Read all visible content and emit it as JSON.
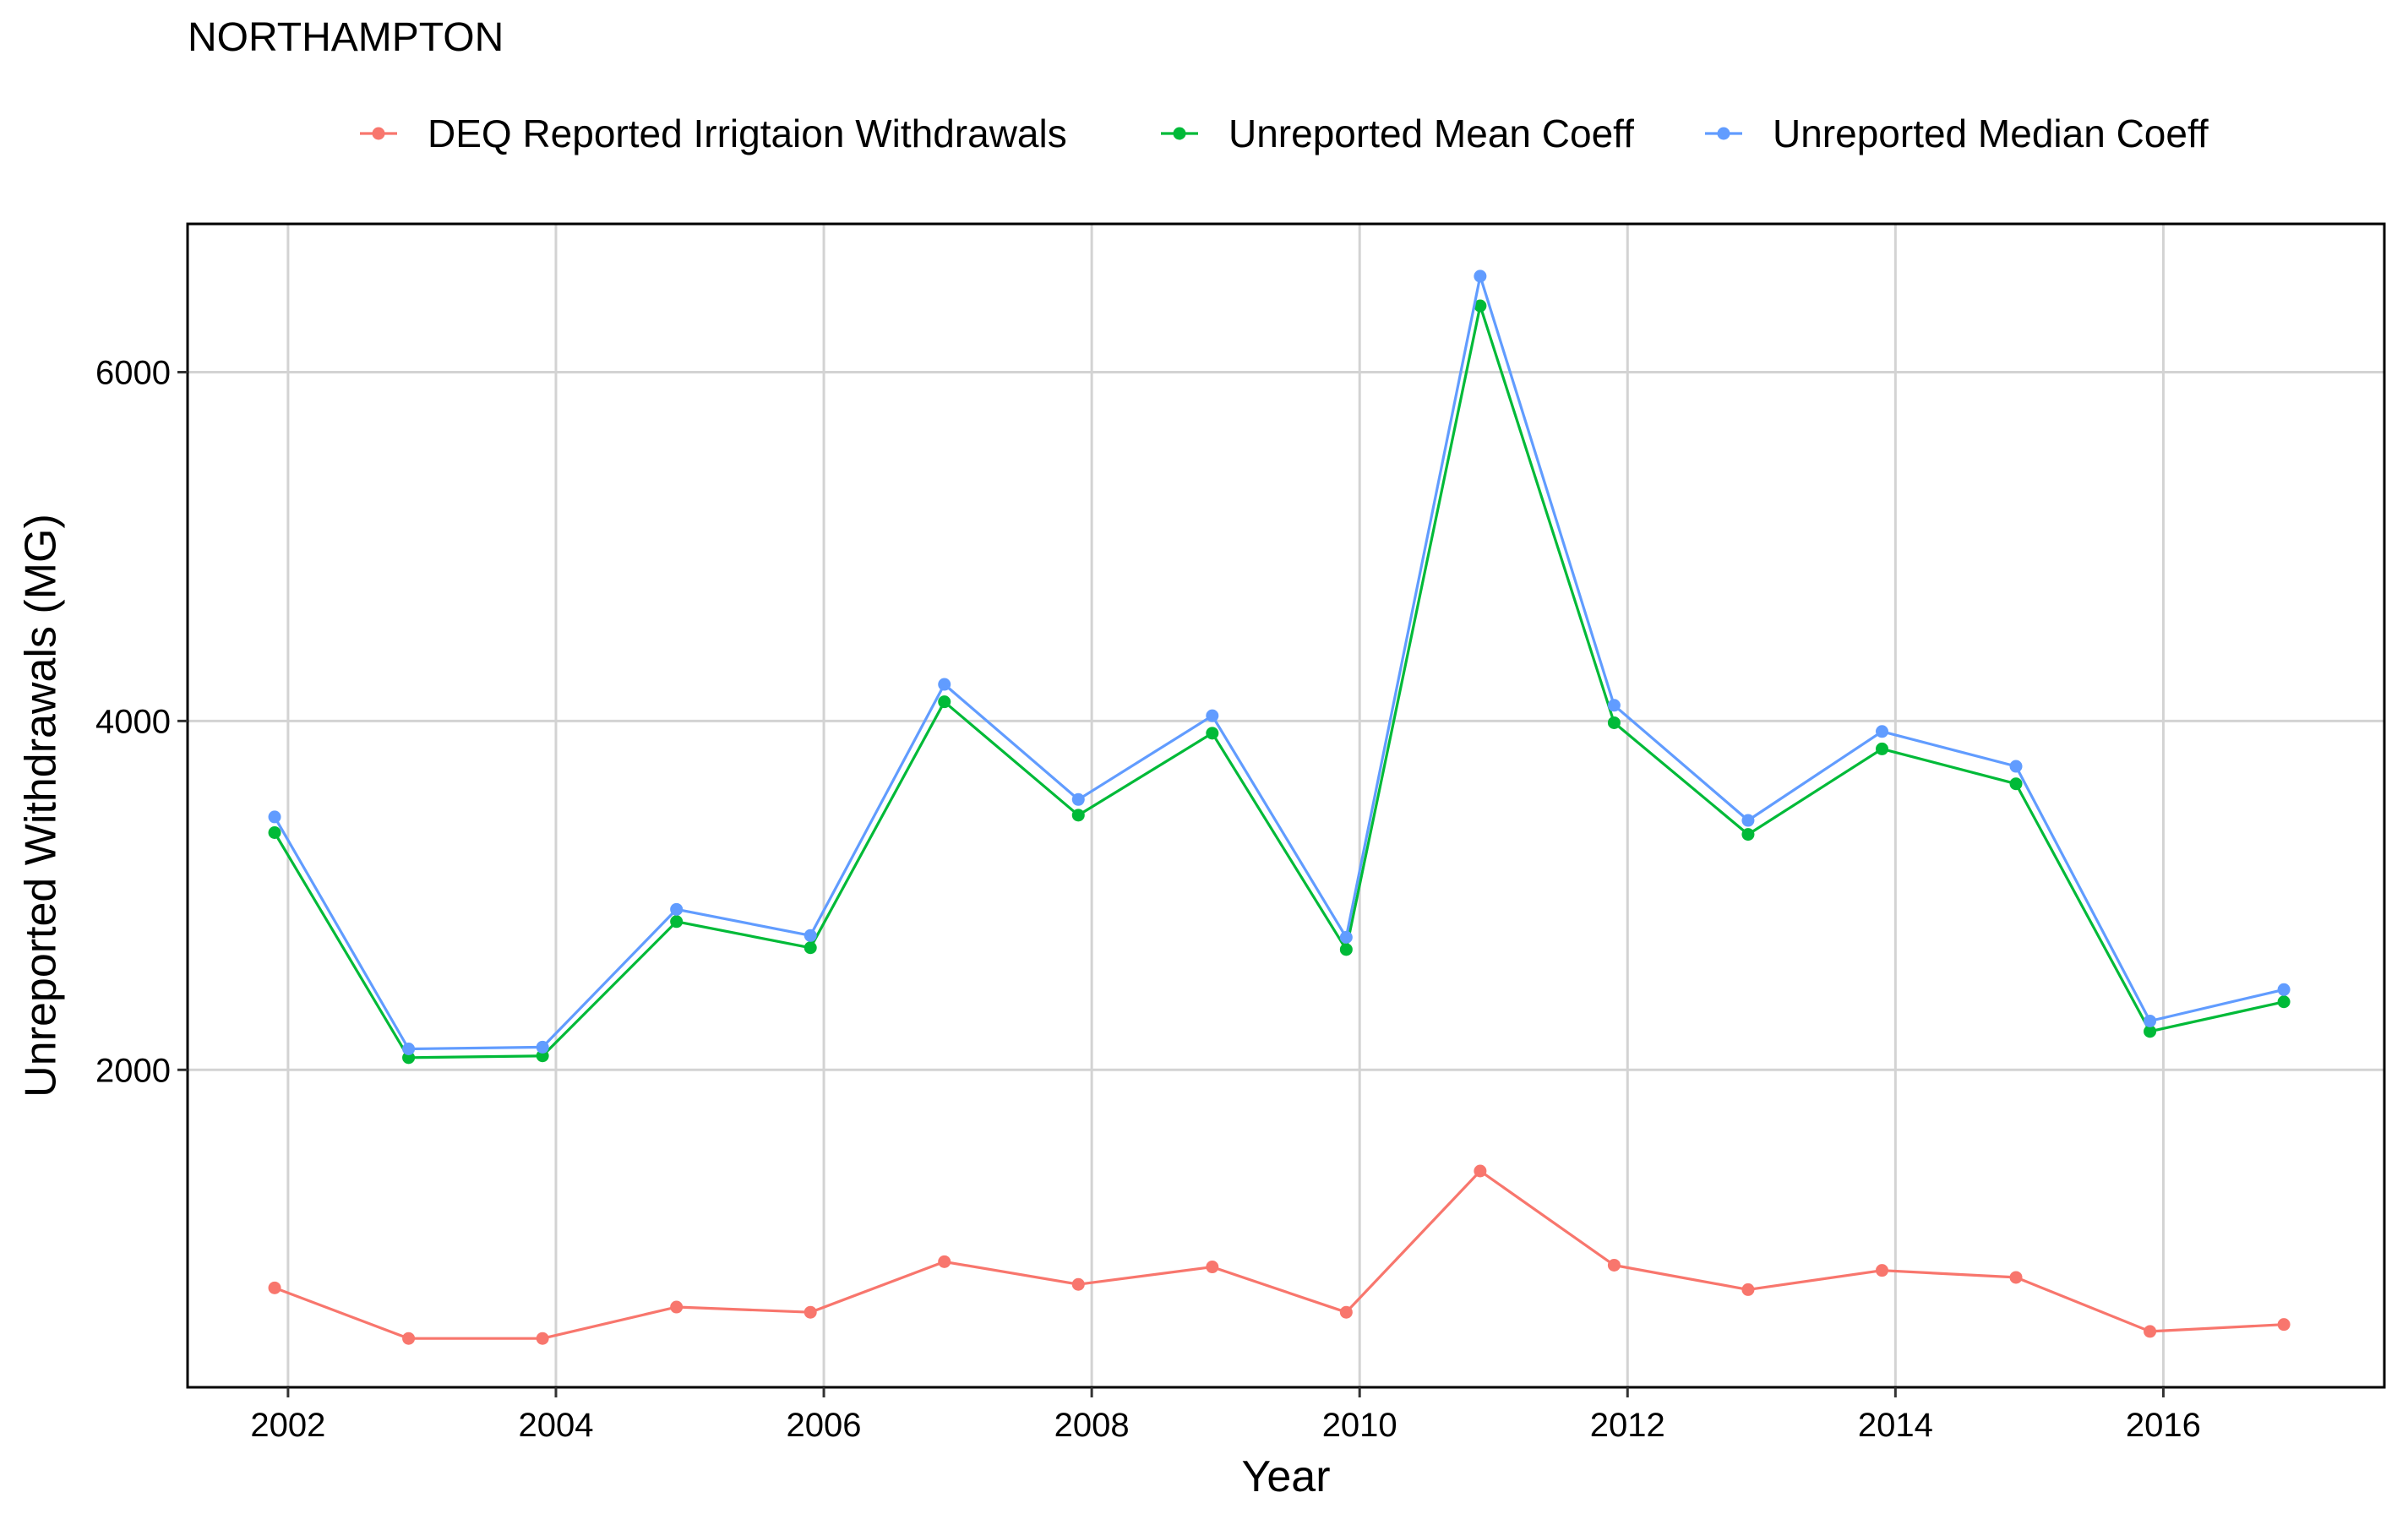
{
  "chart_data": {
    "type": "line",
    "title": "NORTHAMPTON",
    "xlabel": "Year",
    "ylabel": "Unreported Withdrawals (MG)",
    "x": [
      2001.9,
      2002.9,
      2003.9,
      2004.9,
      2005.9,
      2006.9,
      2007.9,
      2008.9,
      2009.9,
      2010.9,
      2011.9,
      2012.9,
      2013.9,
      2014.9,
      2015.9,
      2016.9
    ],
    "xlim": [
      2001.25,
      2017.65
    ],
    "ylim": [
      180,
      6850
    ],
    "x_ticks": [
      2002,
      2004,
      2006,
      2008,
      2010,
      2012,
      2014,
      2016
    ],
    "y_ticks": [
      2000,
      4000,
      6000
    ],
    "grid": true,
    "legend_position": "top",
    "series": [
      {
        "name": "DEQ Reported Irrigtaion Withdrawals",
        "color": "#F8766D",
        "values": [
          750,
          460,
          460,
          640,
          610,
          900,
          770,
          870,
          610,
          1420,
          880,
          740,
          850,
          810,
          500,
          540
        ]
      },
      {
        "name": "Unreported Mean Coeff",
        "color": "#00BA38",
        "values": [
          3360,
          2070,
          2080,
          2850,
          2700,
          4110,
          3460,
          3930,
          2690,
          6380,
          3990,
          3350,
          3840,
          3640,
          2220,
          2390
        ]
      },
      {
        "name": "Unreported Median Coeff",
        "color": "#619CFF",
        "values": [
          3450,
          2120,
          2130,
          2920,
          2770,
          4210,
          3550,
          4030,
          2760,
          6550,
          4090,
          3430,
          3940,
          3740,
          2280,
          2460
        ]
      }
    ]
  }
}
